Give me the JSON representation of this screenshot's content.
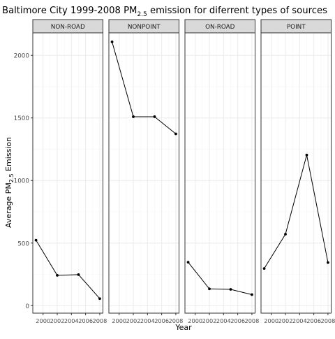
{
  "chart_data": {
    "type": "line",
    "title_main": "Baltimore City 1999-2008 PM",
    "title_sub": "2.5",
    "title_tail": " emission for diferrent types of sources",
    "xlabel": "Year",
    "ylabel_main": "Average PM",
    "ylabel_sub": "2.5",
    "ylabel_tail": " Emission",
    "x": [
      1999,
      2002,
      2005,
      2008
    ],
    "x_ticks": [
      2000,
      2002,
      2004,
      2006,
      2008
    ],
    "x_tick_labels": [
      "2000",
      "2002",
      "2004",
      "2006",
      "2008"
    ],
    "xlim": [
      1998.55,
      2008.45
    ],
    "ylim": [
      -60,
      2180
    ],
    "y_ticks": [
      0,
      500,
      1000,
      1500,
      2000
    ],
    "y_tick_labels": [
      "0",
      "500",
      "1000",
      "1500",
      "2000"
    ],
    "grid": true,
    "facets": [
      {
        "name": "NON-ROAD",
        "values": [
          523,
          242,
          248,
          56
        ]
      },
      {
        "name": "NONPOINT",
        "values": [
          2108,
          1510,
          1510,
          1373
        ]
      },
      {
        "name": "ON-ROAD",
        "values": [
          347,
          134,
          130,
          88
        ]
      },
      {
        "name": "POINT",
        "values": [
          297,
          571,
          1204,
          344
        ]
      }
    ],
    "colors": {
      "line": "#000000",
      "strip_fill": "#d9d9d9",
      "panel_border": "#333333",
      "grid_major": "#ebebeb",
      "grid_minor": "#f5f5f5",
      "axis_text": "#4d4d4d"
    }
  }
}
